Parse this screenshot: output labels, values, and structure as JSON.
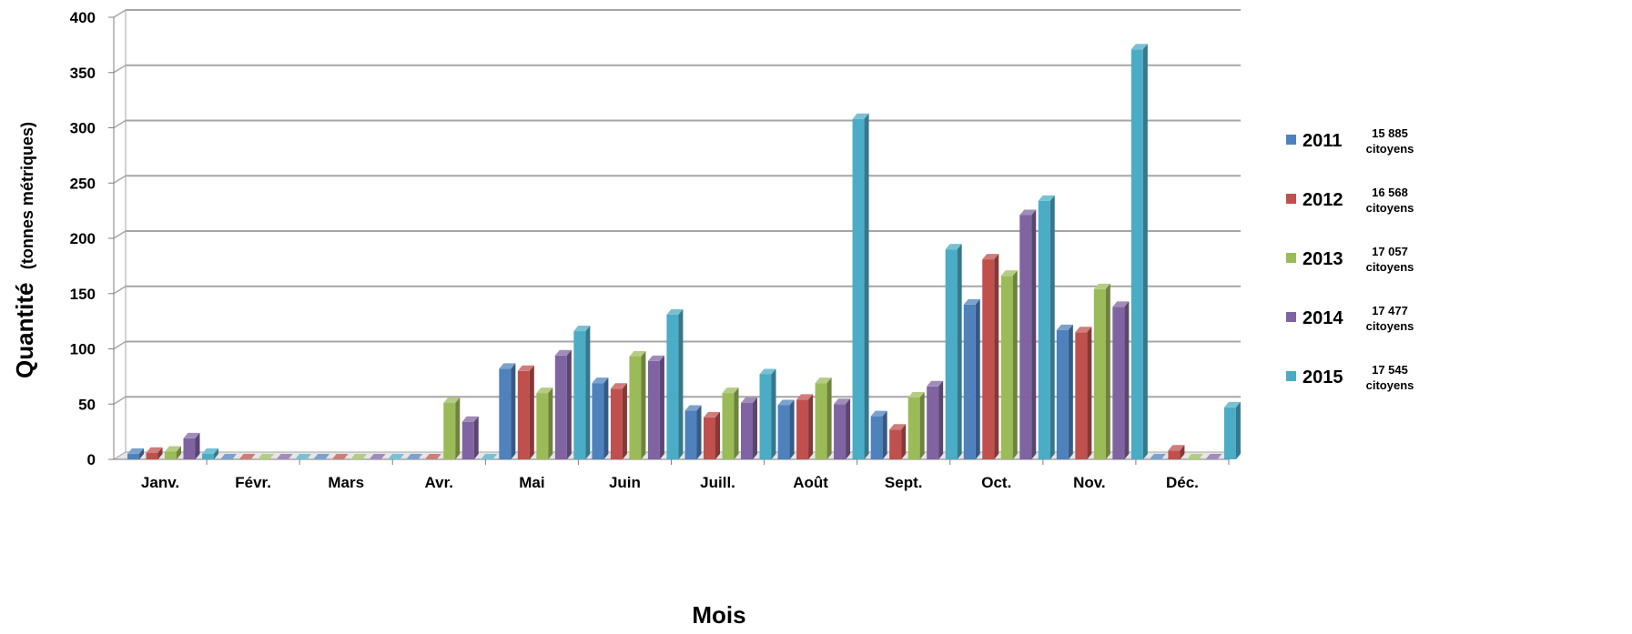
{
  "chart_data": {
    "type": "bar",
    "xlabel": "Mois",
    "ylabel": "Quantité",
    "ylabel_unit": "(tonnes métriques)",
    "ylim": [
      0,
      400
    ],
    "yticks": [
      0,
      50,
      100,
      150,
      200,
      250,
      300,
      350,
      400
    ],
    "grid": true,
    "legend_position": "right",
    "categories": [
      "Janv.",
      "Févr.",
      "Mars",
      "Avr.",
      "Mai",
      "Juin",
      "Juill.",
      "Août",
      "Sept.",
      "Oct.",
      "Nov.",
      "Déc."
    ],
    "series": [
      {
        "name": "2011",
        "note_line1": "15 885",
        "note_line2": "citoyens",
        "color": "#4f81bd",
        "values": [
          5,
          0,
          0,
          0,
          82,
          69,
          44,
          49,
          39,
          140,
          117,
          0
        ]
      },
      {
        "name": "2012",
        "note_line1": "16 568",
        "note_line2": "citoyens",
        "color": "#c0504d",
        "values": [
          6,
          0,
          0,
          0,
          80,
          64,
          38,
          54,
          27,
          181,
          115,
          8
        ]
      },
      {
        "name": "2013",
        "note_line1": "17 057",
        "note_line2": "citoyens",
        "color": "#9bbb59",
        "values": [
          7,
          0,
          0,
          51,
          60,
          93,
          60,
          69,
          56,
          166,
          154,
          0
        ]
      },
      {
        "name": "2014",
        "note_line1": "17 477",
        "note_line2": "citoyens",
        "color": "#8064a2",
        "values": [
          19,
          0,
          0,
          34,
          94,
          89,
          51,
          50,
          66,
          221,
          138,
          0
        ]
      },
      {
        "name": "2015",
        "note_line1": "17 545",
        "note_line2": "citoyens",
        "color": "#4bacc6",
        "values": [
          5,
          0,
          0,
          0,
          116,
          131,
          77,
          308,
          190,
          234,
          371,
          47
        ]
      }
    ]
  }
}
